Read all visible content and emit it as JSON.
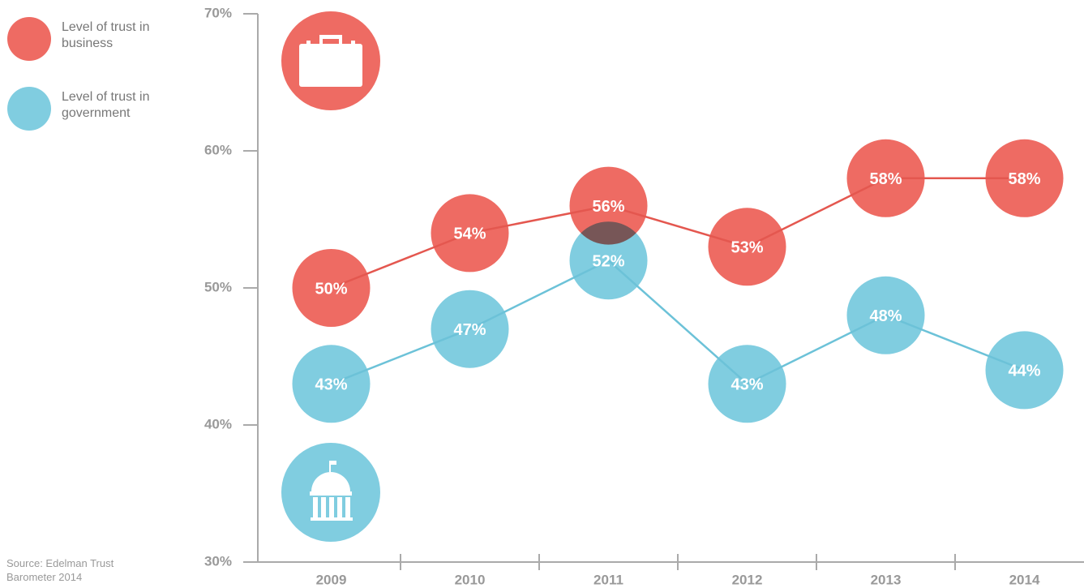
{
  "chart_data": {
    "type": "line",
    "categories": [
      "2009",
      "2010",
      "2011",
      "2012",
      "2013",
      "2014"
    ],
    "series": [
      {
        "name": "Level of trust in business",
        "color": "#ee6b63",
        "line_color": "#e4574f",
        "values": [
          50,
          54,
          56,
          53,
          58,
          58
        ],
        "value_labels": [
          "50%",
          "54%",
          "56%",
          "53%",
          "58%",
          "58%"
        ]
      },
      {
        "name": "Level of trust in government",
        "color": "#80cde0",
        "line_color": "#6cc2d8",
        "values": [
          43,
          47,
          52,
          43,
          48,
          44
        ],
        "value_labels": [
          "43%",
          "47%",
          "52%",
          "43%",
          "48%",
          "44%"
        ]
      }
    ],
    "ylim": [
      30,
      70
    ],
    "yticks": [
      {
        "value": 30,
        "label": "30%"
      },
      {
        "value": 40,
        "label": "40%"
      },
      {
        "value": 50,
        "label": "50%"
      },
      {
        "value": 60,
        "label": "60%"
      },
      {
        "value": 70,
        "label": "70%"
      }
    ],
    "source": "Source: Edelman Trust Barometer 2014"
  }
}
